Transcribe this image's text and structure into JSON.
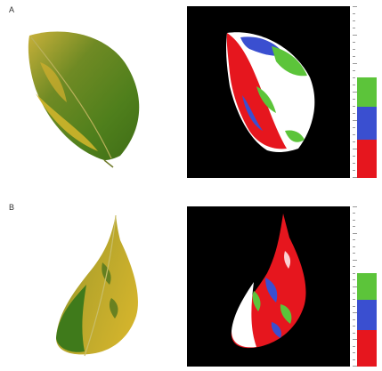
{
  "panels": [
    {
      "label": "A",
      "colorbar": {
        "segments": [
          {
            "name": "green-class",
            "color": "#5cc43a"
          },
          {
            "name": "blue-class",
            "color": "#3a4fd0"
          },
          {
            "name": "red-class",
            "color": "#e6161e"
          }
        ]
      }
    },
    {
      "label": "B",
      "colorbar": {
        "segments": [
          {
            "name": "green-class",
            "color": "#5cc43a"
          },
          {
            "name": "blue-class",
            "color": "#3a4fd0"
          },
          {
            "name": "red-class",
            "color": "#e6161e"
          }
        ]
      }
    }
  ],
  "colors": {
    "background": "#000000",
    "leaf_green": "#4f7f1c",
    "leaf_yellow": "#c9a92b",
    "class_white": "#ffffff",
    "class_green": "#5cc43a",
    "class_blue": "#3a4fd0",
    "class_red": "#e6161e"
  }
}
